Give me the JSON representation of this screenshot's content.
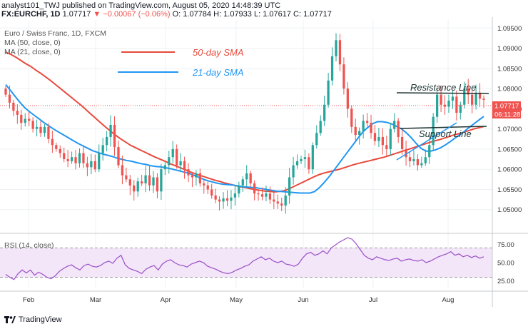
{
  "header": {
    "line1": "analyst101_TWJ published on TradingView.com, August 05, 2020 14:48:39 UTC",
    "line2_symbol": "FX:EURCHF, 1D",
    "line2_price": "1.07717",
    "line2_change": "▼ −0.00067 (−0.06%)",
    "line2_ohlc": "O: 1.07784  H: 1.07933  L: 1.07617  C: 1.07717"
  },
  "legend": {
    "title": "Euro / Swiss Franc, 1D, FXCM",
    "ma50": "MA (50, close, 0)",
    "ma21": "MA (21, close, 0)"
  },
  "annotations": {
    "sma50": "50-day SMA",
    "sma21": "21-day SMA",
    "resistance": "Resistance Line",
    "support": "Support Line"
  },
  "price_tag": "1.07717",
  "time_tag": "06:11:28",
  "rsi_label": "RSI (14, close)",
  "brand": "TradingView",
  "colors": {
    "up": "#26a69a",
    "down": "#ef5350",
    "ma50": "#e84a3c",
    "ma21": "#2196f3",
    "rsi": "#9c4fc9",
    "rsi_band": "#f2e6f8"
  },
  "chart_data": {
    "type": "candlestick",
    "price_axis": {
      "min": 1.045,
      "max": 1.097,
      "ticks": [
        "1.05000",
        "1.05500",
        "1.06000",
        "1.06500",
        "1.07000",
        "1.07500",
        "1.08000",
        "1.08500",
        "1.09000",
        "1.09500"
      ]
    },
    "x_labels": [
      "Feb",
      "Mar",
      "Apr",
      "May",
      "Jun",
      "Jul",
      "Aug"
    ],
    "rsi_axis": {
      "min": 15,
      "max": 85,
      "ticks": [
        "25.00",
        "50.00",
        "75.00"
      ],
      "band": [
        30,
        70
      ]
    },
    "close": [
      1.0785,
      1.0765,
      1.0745,
      1.0735,
      1.0715,
      1.0725,
      1.072,
      1.07,
      1.0705,
      1.069,
      1.0705,
      1.0675,
      1.066,
      1.065,
      1.064,
      1.0625,
      1.062,
      1.063,
      1.0615,
      1.064,
      1.0615,
      1.0605,
      1.062,
      1.06,
      1.064,
      1.066,
      1.068,
      1.071,
      1.0655,
      1.061,
      1.0585,
      1.0575,
      1.056,
      1.0545,
      1.057,
      1.0565,
      1.0585,
      1.056,
      1.058,
      1.0545,
      1.06,
      1.061,
      1.063,
      1.065,
      1.061,
      1.062,
      1.06,
      1.0585,
      1.058,
      1.059,
      1.0565,
      1.056,
      1.055,
      1.0535,
      1.0525,
      1.052,
      1.0528,
      1.0522,
      1.053,
      1.054,
      1.056,
      1.0575,
      1.059,
      1.0565,
      1.054,
      1.0538,
      1.0532,
      1.054,
      1.0525,
      1.052,
      1.0515,
      1.051,
      1.0535,
      1.058,
      1.061,
      1.062,
      1.0625,
      1.063,
      1.06,
      1.066,
      1.069,
      1.072,
      1.076,
      1.082,
      1.088,
      1.092,
      1.086,
      1.08,
      1.075,
      1.0705,
      1.0685,
      1.0695,
      1.072,
      1.0715,
      1.069,
      1.067,
      1.068,
      1.066,
      1.065,
      1.07,
      1.072,
      1.068,
      1.065,
      1.063,
      1.062,
      1.0625,
      1.061,
      1.0615,
      1.063,
      1.066,
      1.073,
      1.0785,
      1.076,
      1.0755,
      1.077,
      1.078,
      1.074,
      1.076,
      1.08,
      1.0785,
      1.076,
      1.079,
      1.0775,
      1.0772
    ],
    "ma50": [
      1.089,
      1.0885,
      1.0878,
      1.087,
      1.0862,
      1.0855,
      1.0846,
      1.0838,
      1.0829,
      1.082,
      1.081,
      1.08,
      1.079,
      1.078,
      1.077,
      1.076,
      1.0749,
      1.0738,
      1.0727,
      1.0716,
      1.0705,
      1.0695,
      1.0685,
      1.0676,
      1.0668,
      1.066,
      1.0654,
      1.0648,
      1.0642,
      1.0636,
      1.063,
      1.0625,
      1.062,
      1.0614,
      1.0609,
      1.0604,
      1.0599,
      1.0594,
      1.0589,
      1.0585,
      1.0581,
      1.0577,
      1.0573,
      1.057,
      1.0566,
      1.0563,
      1.056,
      1.0557,
      1.0555,
      1.0552,
      1.055,
      1.0548,
      1.0546,
      1.0545,
      1.0544,
      1.0545,
      1.0547,
      1.0552,
      1.0558,
      1.0564,
      1.057,
      1.0576,
      1.0582,
      1.0587,
      1.0591,
      1.0594,
      1.0597,
      1.06,
      1.0604,
      1.0608,
      1.0612,
      1.0615,
      1.0618,
      1.0621,
      1.0624,
      1.0627,
      1.063,
      1.0634,
      1.0638,
      1.0642,
      1.0646,
      1.065,
      1.0654,
      1.0658,
      1.0662,
      1.0666,
      1.067,
      1.0673,
      1.0677,
      1.0681,
      1.0685,
      1.0688,
      1.0692,
      1.0696,
      1.07,
      1.0703,
      1.0706
    ],
    "ma21": [
      1.081,
      1.0795,
      1.078,
      1.0765,
      1.0752,
      1.0742,
      1.0733,
      1.0724,
      1.0715,
      1.0707,
      1.0699,
      1.0692,
      1.0685,
      1.0678,
      1.0671,
      1.0664,
      1.0658,
      1.0652,
      1.0646,
      1.0642,
      1.0638,
      1.0635,
      1.0632,
      1.0628,
      1.0625,
      1.0622,
      1.062,
      1.0617,
      1.0614,
      1.0612,
      1.0609,
      1.0607,
      1.0606,
      1.0604,
      1.0602,
      1.0599,
      1.0596,
      1.0593,
      1.059,
      1.0585,
      1.058,
      1.0575,
      1.0571,
      1.0568,
      1.0565,
      1.0563,
      1.0562,
      1.0561,
      1.0559,
      1.0557,
      1.0556,
      1.0555,
      1.0554,
      1.0552,
      1.055,
      1.0548,
      1.0546,
      1.0545,
      1.0544,
      1.0543,
      1.0542,
      1.0541,
      1.0541,
      1.0541,
      1.0545,
      1.0555,
      1.0568,
      1.0582,
      1.0598,
      1.0614,
      1.063,
      1.0646,
      1.0662,
      1.0678,
      1.0693,
      1.0704,
      1.0713,
      1.0718,
      1.0718,
      1.0716,
      1.0712,
      1.0706,
      1.07,
      1.069,
      1.0678,
      1.0664,
      1.0652,
      1.0645,
      1.0645,
      1.0648,
      1.0653,
      1.066,
      1.0668,
      1.0677,
      1.0685,
      1.0694,
      1.0704,
      1.0713,
      1.0722,
      1.0731
    ],
    "rsi": [
      34,
      30,
      27,
      35,
      40,
      36,
      40,
      33,
      37,
      34,
      30,
      28,
      32,
      38,
      42,
      45,
      47,
      43,
      40,
      46,
      48,
      45,
      44,
      46,
      50,
      52,
      49,
      56,
      60,
      47,
      42,
      40,
      38,
      35,
      41,
      44,
      46,
      40,
      48,
      52,
      54,
      50,
      47,
      46,
      44,
      48,
      50,
      52,
      50,
      45,
      43,
      41,
      38,
      36,
      35,
      37,
      40,
      42,
      45,
      47,
      52,
      55,
      58,
      54,
      56,
      52,
      50,
      52,
      48,
      47,
      45,
      48,
      56,
      62,
      64,
      60,
      62,
      66,
      62,
      70,
      74,
      78,
      81,
      84,
      82,
      76,
      68,
      60,
      56,
      54,
      58,
      56,
      54,
      53,
      55,
      56,
      52,
      54,
      55,
      53,
      52,
      54,
      50,
      52,
      55,
      58,
      60,
      62,
      65,
      60,
      62,
      58,
      60,
      57,
      59,
      56,
      58
    ]
  }
}
